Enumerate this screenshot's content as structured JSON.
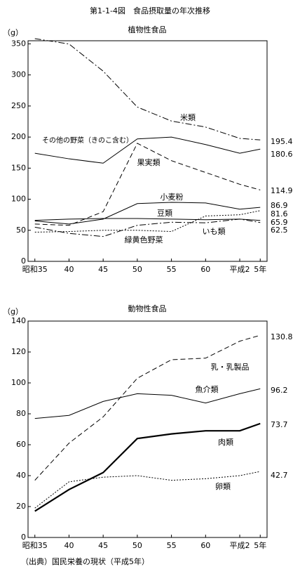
{
  "title": "第1-1-4図　食品摂取量の年次推移",
  "source": "（出典）国民栄養の現状（平成5年）",
  "chart_data": [
    {
      "type": "line",
      "title": "植物性食品",
      "y_label": "（g）",
      "x": [
        1960,
        1965,
        1970,
        1975,
        1980,
        1985,
        1990,
        1993
      ],
      "xlim": [
        1959,
        1994
      ],
      "xticks": [
        {
          "value": 1960,
          "label": "昭和35"
        },
        {
          "value": 1965,
          "label": "40"
        },
        {
          "value": 1970,
          "label": "45"
        },
        {
          "value": 1975,
          "label": "50"
        },
        {
          "value": 1980,
          "label": "55"
        },
        {
          "value": 1985,
          "label": "60"
        },
        {
          "value": 1990,
          "label": "平成2"
        },
        {
          "value": 1993,
          "label": "5年"
        }
      ],
      "ylim": [
        0,
        355
      ],
      "yticks": [
        0,
        50,
        100,
        150,
        200,
        250,
        300,
        350
      ],
      "series": [
        {
          "name": "米類",
          "color": "#000000",
          "style": "dashdot",
          "values": [
            358.4,
            349.8,
            306.1,
            248.3,
            225.8,
            216.1,
            197.9,
            195.4
          ]
        },
        {
          "name": "その他の野菜（きのこ含む）",
          "color": "#000000",
          "style": "solid",
          "values": [
            174,
            165,
            158,
            197,
            200,
            188,
            174,
            180.6
          ]
        },
        {
          "name": "果実類",
          "color": "#000000",
          "style": "dashed",
          "values": [
            60,
            58,
            80,
            190,
            162,
            143,
            124,
            114.9
          ]
        },
        {
          "name": "小麦粉",
          "color": "#000000",
          "style": "solid",
          "values": [
            65,
            60,
            68,
            93,
            95,
            94,
            84,
            86.9
          ]
        },
        {
          "name": "緑黄色野菜",
          "color": "#000000",
          "style": "dotted",
          "values": [
            47,
            48,
            50,
            50,
            48,
            73,
            75,
            81.6
          ]
        },
        {
          "name": "豆類",
          "color": "#000000",
          "style": "solid",
          "values": [
            66,
            68,
            69,
            69,
            68,
            67,
            68,
            65.9
          ]
        },
        {
          "name": "いも類",
          "color": "#000000",
          "style": "dashdot",
          "values": [
            55,
            45,
            40,
            58,
            63,
            62,
            68,
            62.5
          ]
        }
      ]
    },
    {
      "type": "line",
      "title": "動物性食品",
      "y_label": "（g）",
      "x": [
        1960,
        1965,
        1970,
        1975,
        1980,
        1985,
        1990,
        1993
      ],
      "xlim": [
        1959,
        1994
      ],
      "xticks": [
        {
          "value": 1960,
          "label": "昭和35"
        },
        {
          "value": 1965,
          "label": "40"
        },
        {
          "value": 1970,
          "label": "45"
        },
        {
          "value": 1975,
          "label": "50"
        },
        {
          "value": 1980,
          "label": "55"
        },
        {
          "value": 1985,
          "label": "60"
        },
        {
          "value": 1990,
          "label": "平成2"
        },
        {
          "value": 1993,
          "label": "5年"
        }
      ],
      "ylim": [
        0,
        140
      ],
      "yticks": [
        0,
        20,
        40,
        60,
        80,
        100,
        120,
        140
      ],
      "series": [
        {
          "name": "乳・乳製品",
          "color": "#000000",
          "style": "dashed",
          "values": [
            37,
            61,
            78,
            103,
            115,
            116,
            127,
            130.8
          ]
        },
        {
          "name": "魚介類",
          "color": "#000000",
          "style": "solid",
          "values": [
            77,
            79,
            88,
            93,
            92,
            87,
            93,
            96.2
          ]
        },
        {
          "name": "肉類",
          "color": "#000000",
          "style": "thick",
          "values": [
            17,
            31,
            42,
            64,
            67,
            69,
            69,
            73.7
          ]
        },
        {
          "name": "卵類",
          "color": "#000000",
          "style": "dotted",
          "values": [
            19,
            36,
            39,
            40,
            37,
            38,
            40,
            42.7
          ]
        }
      ]
    }
  ]
}
